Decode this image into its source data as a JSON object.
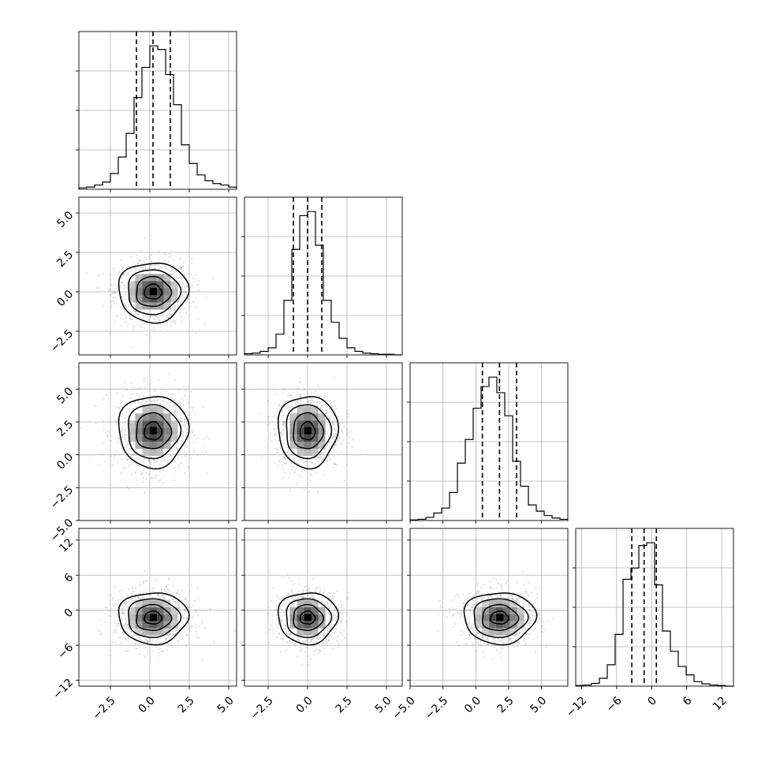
{
  "chart_data": {
    "type": "corner",
    "title": "",
    "grid": true,
    "dims": [
      {
        "lim": [
          -4.5,
          5.5
        ],
        "ticks": [
          -2.5,
          0.0,
          2.5,
          5.0
        ],
        "tick_labels": [
          "−2.5",
          "0.0",
          "2.5",
          "5.0"
        ],
        "mean": 0.2,
        "sd": 1.05,
        "quantiles": [
          -0.85,
          0.2,
          1.3
        ]
      },
      {
        "lim": [
          -4.0,
          6.0
        ],
        "ticks": [
          -2.5,
          0.0,
          2.5,
          5.0
        ],
        "tick_labels": [
          "−2.5",
          "0.0",
          "2.5",
          "5.0"
        ],
        "mean": 0.0,
        "sd": 0.9,
        "quantiles": [
          -0.9,
          0.0,
          0.9
        ]
      },
      {
        "lim": [
          -5.0,
          7.0
        ],
        "ticks": [
          -5.0,
          -2.5,
          0.0,
          2.5,
          5.0
        ],
        "tick_labels": [
          "−5.0",
          "−2.5",
          "0.0",
          "2.5",
          "5.0"
        ],
        "mean": 1.8,
        "sd": 1.3,
        "quantiles": [
          0.5,
          1.8,
          3.1
        ]
      },
      {
        "lim": [
          -13.0,
          14.0
        ],
        "ticks": [
          -12,
          -6,
          0,
          6,
          12
        ],
        "tick_labels": [
          "−12",
          "−6",
          "0",
          "6",
          "12"
        ],
        "mean": -1.3,
        "sd": 2.1,
        "quantiles": [
          -3.4,
          -1.3,
          0.8
        ]
      }
    ],
    "histograms": [
      {
        "dim": 0,
        "bins": 20,
        "counts": [
          2,
          3,
          6,
          10,
          22,
          45,
          78,
          128,
          170,
          200,
          195,
          160,
          118,
          62,
          36,
          20,
          12,
          8,
          6,
          3
        ]
      },
      {
        "dim": 1,
        "bins": 20,
        "counts": [
          2,
          3,
          6,
          12,
          35,
          92,
          178,
          235,
          242,
          185,
          92,
          55,
          28,
          12,
          6,
          3,
          2,
          1,
          1,
          0
        ]
      },
      {
        "dim": 2,
        "bins": 20,
        "counts": [
          1,
          2,
          5,
          12,
          20,
          45,
          92,
          130,
          180,
          215,
          230,
          205,
          168,
          95,
          55,
          25,
          15,
          8,
          4,
          2
        ]
      },
      {
        "dim": 3,
        "bins": 20,
        "counts": [
          1,
          2,
          5,
          14,
          38,
          92,
          190,
          210,
          250,
          255,
          180,
          98,
          62,
          35,
          20,
          8,
          4,
          2,
          1,
          0
        ]
      }
    ],
    "pairs": [
      {
        "x_dim": 0,
        "y_dim": 1,
        "center": [
          0.2,
          0.0
        ]
      },
      {
        "x_dim": 0,
        "y_dim": 2,
        "center": [
          0.2,
          1.8
        ]
      },
      {
        "x_dim": 1,
        "y_dim": 2,
        "center": [
          0.0,
          1.8
        ]
      },
      {
        "x_dim": 0,
        "y_dim": 3,
        "center": [
          0.2,
          -1.3
        ]
      },
      {
        "x_dim": 1,
        "y_dim": 3,
        "center": [
          0.0,
          -1.3
        ]
      },
      {
        "x_dim": 2,
        "y_dim": 3,
        "center": [
          1.8,
          -1.3
        ]
      }
    ],
    "contour_levels_sigma": [
      0.5,
      1.0,
      1.5,
      2.0
    ]
  }
}
